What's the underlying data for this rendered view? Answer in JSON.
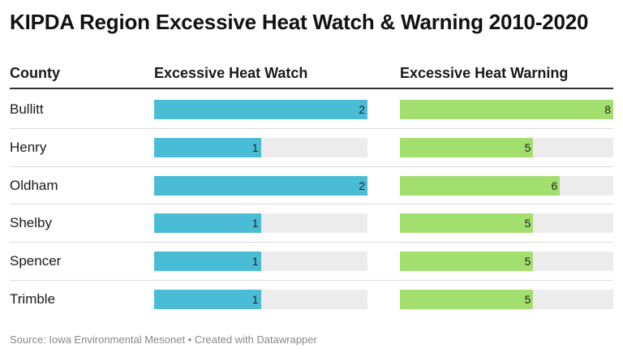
{
  "title": "KIPDA Region Excessive Heat Watch & Warning 2010-2020",
  "source": "Source: Iowa Environmental Mesonet • Created with Datawrapper",
  "colors": {
    "watch": "#4bbcd6",
    "warning": "#a3df6e",
    "track": "#ececec"
  },
  "chart_data": {
    "type": "bar",
    "columns": [
      "County",
      "Excessive Heat Watch",
      "Excessive Heat Warning"
    ],
    "categories": [
      "Bullitt",
      "Henry",
      "Oldham",
      "Shelby",
      "Spencer",
      "Trimble"
    ],
    "series": [
      {
        "name": "Excessive Heat Watch",
        "values": [
          2,
          1,
          2,
          1,
          1,
          1
        ],
        "max": 2
      },
      {
        "name": "Excessive Heat Warning",
        "values": [
          8,
          5,
          6,
          5,
          5,
          5
        ],
        "max": 8
      }
    ]
  }
}
